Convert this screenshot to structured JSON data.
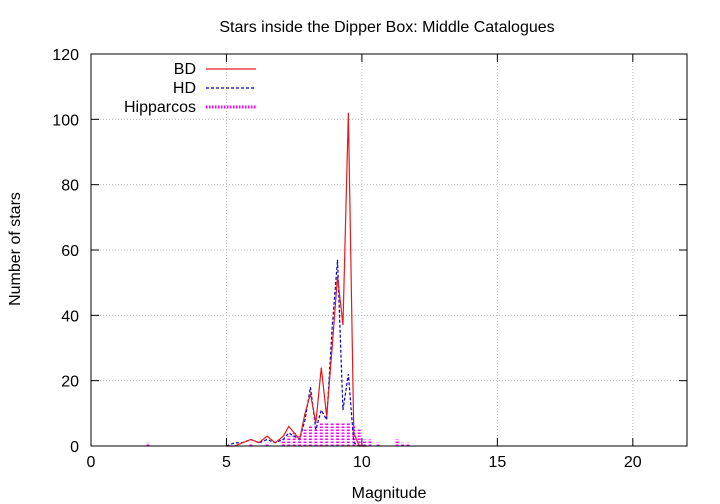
{
  "chart_data": {
    "type": "line",
    "title": "Stars inside the Dipper Box: Middle Catalogues",
    "xlabel": "Magnitude",
    "ylabel": "Number of stars",
    "xlim": [
      0,
      22
    ],
    "ylim": [
      0,
      120
    ],
    "xticks": [
      0,
      5,
      10,
      15,
      20
    ],
    "yticks": [
      0,
      20,
      40,
      60,
      80,
      100,
      120
    ],
    "grid": true,
    "legend_position": "top-left",
    "series": [
      {
        "name": "BD",
        "color": "#e41a1c",
        "style": "solid",
        "points": [
          [
            5.0,
            0
          ],
          [
            5.3,
            0
          ],
          [
            5.6,
            1
          ],
          [
            5.9,
            2
          ],
          [
            6.2,
            1
          ],
          [
            6.5,
            3
          ],
          [
            6.8,
            1
          ],
          [
            7.1,
            3
          ],
          [
            7.3,
            6
          ],
          [
            7.5,
            4
          ],
          [
            7.7,
            2
          ],
          [
            7.9,
            10
          ],
          [
            8.1,
            16
          ],
          [
            8.3,
            7
          ],
          [
            8.5,
            24
          ],
          [
            8.7,
            9
          ],
          [
            8.9,
            30
          ],
          [
            9.1,
            52
          ],
          [
            9.3,
            37
          ],
          [
            9.5,
            102
          ],
          [
            9.7,
            4
          ],
          [
            9.9,
            0
          ],
          [
            10.2,
            0
          ]
        ]
      },
      {
        "name": "HD",
        "color": "#0000cc",
        "style": "dashed",
        "points": [
          [
            5.0,
            0
          ],
          [
            5.3,
            1
          ],
          [
            5.6,
            1
          ],
          [
            5.9,
            2
          ],
          [
            6.2,
            1
          ],
          [
            6.5,
            2
          ],
          [
            6.8,
            1
          ],
          [
            7.1,
            2
          ],
          [
            7.3,
            4
          ],
          [
            7.5,
            3
          ],
          [
            7.7,
            2
          ],
          [
            7.9,
            8
          ],
          [
            8.1,
            18
          ],
          [
            8.3,
            5
          ],
          [
            8.5,
            11
          ],
          [
            8.7,
            8
          ],
          [
            8.9,
            36
          ],
          [
            9.1,
            57
          ],
          [
            9.3,
            11
          ],
          [
            9.5,
            22
          ],
          [
            9.7,
            1
          ],
          [
            9.9,
            0
          ],
          [
            10.2,
            0
          ]
        ]
      },
      {
        "name": "Hipparcos",
        "color": "#ff00ff",
        "style": "bars-dotted",
        "points": [
          [
            2.1,
            1
          ],
          [
            5.9,
            1
          ],
          [
            6.5,
            1
          ],
          [
            7.1,
            2
          ],
          [
            7.3,
            3
          ],
          [
            7.5,
            4
          ],
          [
            7.7,
            3
          ],
          [
            7.9,
            5
          ],
          [
            8.1,
            6
          ],
          [
            8.3,
            6
          ],
          [
            8.5,
            7
          ],
          [
            8.7,
            7
          ],
          [
            8.9,
            7
          ],
          [
            9.1,
            7
          ],
          [
            9.3,
            7
          ],
          [
            9.5,
            7
          ],
          [
            9.7,
            6
          ],
          [
            9.9,
            5
          ],
          [
            10.1,
            2
          ],
          [
            10.3,
            2
          ],
          [
            10.6,
            1
          ],
          [
            11.3,
            2
          ],
          [
            11.5,
            1
          ],
          [
            11.7,
            1
          ]
        ]
      }
    ]
  }
}
